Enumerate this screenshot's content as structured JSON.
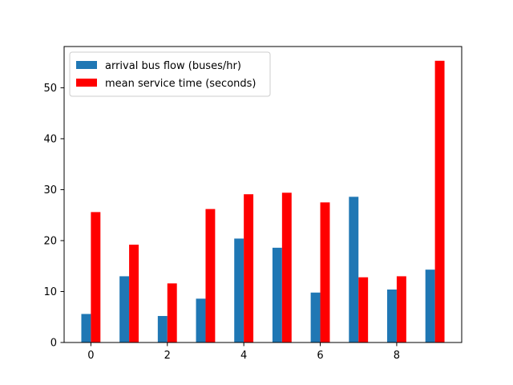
{
  "chart_data": {
    "type": "bar",
    "x": [
      0,
      1,
      2,
      3,
      4,
      5,
      6,
      7,
      8,
      9
    ],
    "series": [
      {
        "name": "arrival bus flow (buses/hr)",
        "color": "#1f77b4",
        "values": [
          5.6,
          13.0,
          5.2,
          8.6,
          20.4,
          18.6,
          9.8,
          28.6,
          10.4,
          14.3
        ]
      },
      {
        "name": "mean service time (seconds)",
        "color": "#ff0000",
        "values": [
          25.6,
          19.2,
          11.6,
          26.2,
          29.1,
          29.4,
          27.5,
          12.8,
          13.0,
          55.3
        ]
      }
    ],
    "xlim": [
      -0.7,
      9.7
    ],
    "ylim": [
      0,
      58.1
    ],
    "xticks": [
      0,
      2,
      4,
      6,
      8
    ],
    "yticks": [
      0,
      10,
      20,
      30,
      40,
      50
    ],
    "xticklabels": [
      "0",
      "2",
      "4",
      "6",
      "8"
    ],
    "yticklabels": [
      "0",
      "10",
      "20",
      "30",
      "40",
      "50"
    ],
    "bar_width": 0.25,
    "grid": false,
    "legend_position": "upper-left",
    "title": "",
    "xlabel": "",
    "ylabel": ""
  }
}
